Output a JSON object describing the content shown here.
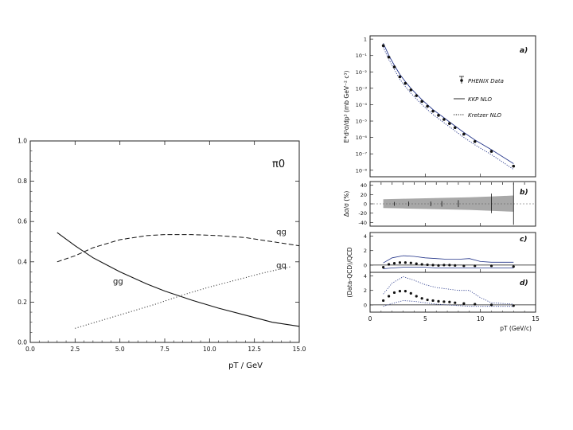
{
  "chart_data": [
    {
      "type": "line",
      "x_ticks": [
        "0.0",
        "2.5",
        "5.0",
        "7.5",
        "10.0",
        "12.5",
        "15.0"
      ],
      "y_ticks": [
        "0.0",
        "0.2",
        "0.4",
        "0.6",
        "0.8",
        "1.0"
      ],
      "xlim": [
        0,
        15
      ],
      "ylim": [
        0,
        1
      ],
      "xlabel": "pT / GeV",
      "annotation": "π0",
      "series": [
        {
          "name": "qg",
          "style": "dashed",
          "x": [
            1.5,
            2.5,
            3.5,
            5,
            6.5,
            7.5,
            9,
            10.5,
            12,
            13.5,
            15
          ],
          "y": [
            0.4,
            0.43,
            0.47,
            0.51,
            0.53,
            0.535,
            0.535,
            0.53,
            0.52,
            0.5,
            0.48
          ]
        },
        {
          "name": "gg",
          "style": "solid",
          "x": [
            1.5,
            2.5,
            3.5,
            5,
            6.5,
            7.5,
            9,
            10.5,
            12,
            13.5,
            15
          ],
          "y": [
            0.545,
            0.48,
            0.42,
            0.35,
            0.29,
            0.255,
            0.21,
            0.17,
            0.135,
            0.1,
            0.08
          ]
        },
        {
          "name": "qq",
          "style": "dotted",
          "x": [
            2.5,
            4,
            5.5,
            7,
            8.5,
            10,
            11.5,
            13,
            14.5
          ],
          "y": [
            0.07,
            0.11,
            0.15,
            0.19,
            0.235,
            0.275,
            0.31,
            0.345,
            0.375
          ]
        }
      ],
      "curve_labels": [
        {
          "text": "qg",
          "x": 14.0,
          "y": 0.535
        },
        {
          "text": "gg",
          "x": 4.9,
          "y": 0.29
        },
        {
          "text": "qq",
          "x": 14.0,
          "y": 0.37
        }
      ]
    },
    {
      "type": "scatter",
      "panel": "a)",
      "ylabel": "E*d³σ/dp³ (mb GeV⁻² c³)",
      "y_ticks": [
        "10⁻⁸",
        "10⁻⁷",
        "10⁻⁶",
        "10⁻⁵",
        "10⁻⁴",
        "10⁻³",
        "10⁻²",
        "10⁻¹",
        "1"
      ],
      "ylim_log10": [
        -8.4,
        0.2
      ],
      "legend": [
        "PHENIX Data",
        "KKP NLO",
        "Kretzer NLO"
      ],
      "data": {
        "x": [
          1.2,
          1.7,
          2.2,
          2.7,
          3.2,
          3.7,
          4.2,
          4.7,
          5.2,
          5.7,
          6.2,
          6.7,
          7.2,
          7.7,
          8.5,
          9.5,
          11,
          13
        ],
        "log10_y": [
          -0.4,
          -1.1,
          -1.7,
          -2.3,
          -2.7,
          -3.1,
          -3.45,
          -3.8,
          -4.1,
          -4.4,
          -4.65,
          -4.9,
          -5.15,
          -5.4,
          -5.8,
          -6.25,
          -6.85,
          -7.75
        ]
      },
      "kkp_log10": [
        -0.25,
        -1.0,
        -1.6,
        -2.15,
        -2.6,
        -3.0,
        -3.35,
        -3.7,
        -4.0,
        -4.3,
        -4.55,
        -4.8,
        -5.05,
        -5.3,
        -5.7,
        -6.15,
        -6.75,
        -7.6
      ],
      "kretzer_log10": [
        -0.5,
        -1.25,
        -1.85,
        -2.45,
        -2.9,
        -3.3,
        -3.65,
        -4.0,
        -4.3,
        -4.6,
        -4.85,
        -5.1,
        -5.35,
        -5.6,
        -6.0,
        -6.45,
        -7.05,
        -7.95
      ]
    },
    {
      "type": "area",
      "panel": "b)",
      "ylabel": "Δσ/σ (%)",
      "y_ticks": [
        "-40",
        "-20",
        "0",
        "20",
        "40"
      ],
      "ylim": [
        -48,
        48
      ],
      "band": {
        "x": [
          1.2,
          3,
          5,
          7,
          9,
          11,
          13
        ],
        "upper": [
          10,
          11,
          12,
          13,
          14,
          16,
          18
        ],
        "lower": [
          -9,
          -10,
          -11,
          -12,
          -13,
          -15,
          -17
        ]
      },
      "errors": {
        "x": [
          2.2,
          3.5,
          5.5,
          6.5,
          8,
          11,
          13
        ],
        "lo": [
          -4,
          -5,
          -5,
          -6,
          -7,
          -20,
          -45
        ],
        "hi": [
          4,
          5,
          5,
          6,
          8,
          22,
          45
        ]
      }
    },
    {
      "type": "line",
      "panel": "c)",
      "y_ticks": [
        "0",
        "2",
        "4"
      ],
      "ylim": [
        -1,
        4.5
      ],
      "points": {
        "x": [
          1.2,
          1.7,
          2.2,
          2.7,
          3.2,
          3.7,
          4.2,
          4.7,
          5.2,
          5.7,
          6.2,
          6.7,
          7.2,
          7.7,
          8.5,
          9.5,
          11,
          13
        ],
        "y": [
          -0.3,
          0.1,
          0.25,
          0.35,
          0.35,
          0.3,
          0.2,
          0.1,
          0.05,
          0.0,
          -0.05,
          0.0,
          0.0,
          -0.05,
          -0.1,
          -0.1,
          -0.1,
          -0.2
        ]
      },
      "upper": {
        "x": [
          1.2,
          2,
          3,
          4,
          5,
          6,
          7,
          8,
          9,
          10,
          11,
          13
        ],
        "y": [
          0.3,
          1.0,
          1.3,
          1.2,
          1.0,
          0.9,
          0.8,
          0.8,
          0.9,
          0.5,
          0.4,
          0.4
        ]
      },
      "lower": {
        "x": [
          1.2,
          2,
          3,
          4,
          5,
          6,
          7,
          8,
          9,
          10,
          11,
          13
        ],
        "y": [
          -0.5,
          -0.4,
          -0.3,
          -0.3,
          -0.3,
          -0.4,
          -0.4,
          -0.4,
          -0.4,
          -0.4,
          -0.4,
          -0.4
        ]
      }
    },
    {
      "type": "line",
      "panel": "d)",
      "shared_ylabel": "(Data-QCD)/QCD",
      "x_ticks": [
        "0",
        "5",
        "10",
        "15"
      ],
      "xlim": [
        0,
        15
      ],
      "xlabel": "pT (GeV/c)",
      "y_ticks": [
        "0",
        "2",
        "4"
      ],
      "ylim": [
        -1,
        4.5
      ],
      "points": {
        "x": [
          1.2,
          1.7,
          2.2,
          2.7,
          3.2,
          3.7,
          4.2,
          4.7,
          5.2,
          5.7,
          6.2,
          6.7,
          7.2,
          7.7,
          8.5,
          9.5,
          11,
          13
        ],
        "y": [
          0.6,
          1.2,
          1.7,
          1.9,
          1.9,
          1.6,
          1.2,
          0.9,
          0.7,
          0.6,
          0.5,
          0.45,
          0.4,
          0.3,
          0.2,
          0.1,
          0.0,
          -0.1
        ]
      },
      "upper": {
        "x": [
          1.2,
          2,
          3,
          4,
          5,
          6,
          7,
          8,
          9,
          10,
          11,
          13
        ],
        "y": [
          1.5,
          3.0,
          3.9,
          3.4,
          2.8,
          2.4,
          2.2,
          2.0,
          2.0,
          1.0,
          0.3,
          0.1
        ]
      },
      "lower": {
        "x": [
          1.2,
          2,
          3,
          4,
          5,
          6,
          7,
          8,
          9,
          10,
          11,
          13
        ],
        "y": [
          -0.2,
          0.2,
          0.6,
          0.5,
          0.3,
          0.1,
          0.0,
          -0.1,
          -0.2,
          -0.2,
          -0.2,
          -0.2
        ]
      }
    }
  ]
}
